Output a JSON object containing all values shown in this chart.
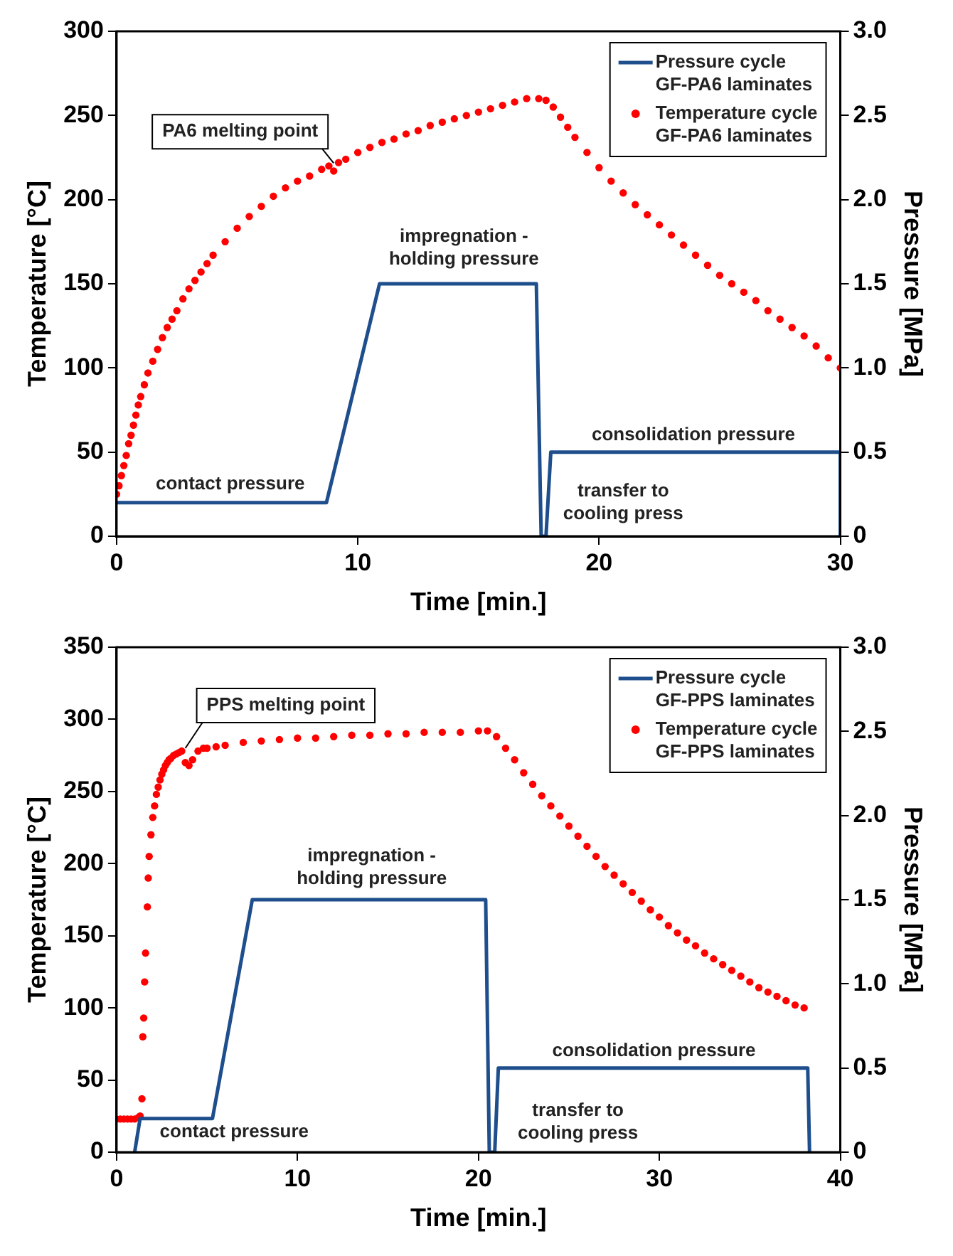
{
  "chart_data": [
    {
      "type": "line",
      "xlabel": "Time [min.]",
      "ylabel": "Temperature [°C]",
      "y2label": "Pressure [MPa]",
      "xlim": [
        0,
        30
      ],
      "xticks": [
        0,
        10,
        20,
        30
      ],
      "ylim": [
        0,
        300
      ],
      "yticks": [
        0,
        50,
        100,
        150,
        200,
        250,
        300
      ],
      "y2lim": [
        0,
        3
      ],
      "y2ticks": [
        0,
        0.5,
        {
          "value": 1,
          "label": "1.0"
        },
        1.5,
        {
          "value": 2,
          "label": "2.0"
        },
        2.5,
        {
          "value": 3,
          "label": "3.0"
        }
      ],
      "legend": "top right",
      "series": [
        {
          "name": "Pressure cycle\nGF-PA6 laminates",
          "axis": "y2",
          "marker": "none",
          "color": "#1f4e8c",
          "x": [
            0,
            8.7,
            10.9,
            17.4,
            17.6,
            17.8,
            18.0,
            30,
            30
          ],
          "values": [
            0.2,
            0.2,
            1.5,
            1.5,
            0,
            0,
            0.5,
            0.5,
            0
          ]
        },
        {
          "name": "Temperature cycle\nGF-PA6 laminates",
          "type": "scatter",
          "marker": "circle",
          "color": "#ff0000",
          "x": [
            0,
            0.1,
            0.2,
            0.3,
            0.4,
            0.5,
            0.6,
            0.7,
            0.8,
            0.9,
            1,
            1.15,
            1.3,
            1.5,
            1.7,
            1.9,
            2.1,
            2.3,
            2.5,
            2.75,
            3,
            3.25,
            3.5,
            3.75,
            4,
            4.5,
            5,
            5.5,
            6,
            6.5,
            7,
            7.5,
            8,
            8.5,
            8.8,
            9,
            9.2,
            9.5,
            10,
            10.5,
            11,
            11.5,
            12,
            12.5,
            13,
            13.5,
            14,
            14.5,
            15,
            15.5,
            16,
            16.5,
            17,
            17.5,
            17.8,
            18.1,
            18.4,
            18.7,
            19,
            19.5,
            20,
            20.5,
            21,
            21.5,
            22,
            22.5,
            23,
            23.5,
            24,
            24.5,
            25,
            25.5,
            26,
            26.5,
            27,
            27.5,
            28,
            28.5,
            29,
            29.5,
            30
          ],
          "values": [
            25,
            30,
            36,
            42,
            48,
            55,
            60,
            66,
            72,
            78,
            83,
            90,
            97,
            104,
            111,
            118,
            124,
            129,
            134,
            141,
            147,
            152,
            157,
            162,
            167,
            175,
            183,
            190,
            196,
            202,
            207,
            211,
            214,
            218,
            220,
            217,
            222,
            224,
            228,
            231,
            234,
            236,
            239,
            241,
            244,
            246,
            248,
            250,
            252,
            254,
            256,
            258,
            260,
            260,
            259,
            255,
            249,
            243,
            237,
            228,
            219,
            211,
            204,
            197,
            191,
            185,
            179,
            173,
            167,
            161,
            155,
            150,
            145,
            140,
            134,
            129,
            124,
            119,
            113,
            106,
            100
          ]
        }
      ],
      "annotations": [
        {
          "text": "PA6 melting point",
          "x": 9,
          "y": 220
        },
        "contact pressure",
        "impregnation -\nholding pressure",
        "consolidation pressure",
        "transfer to\ncooling press"
      ]
    },
    {
      "type": "line",
      "xlabel": "Time [min.]",
      "ylabel": "Temperature [°C]",
      "y2label": "Pressure [MPa]",
      "xlim": [
        0,
        40
      ],
      "xticks": [
        0,
        10,
        20,
        30,
        40
      ],
      "ylim": [
        0,
        350
      ],
      "yticks": [
        0,
        50,
        100,
        150,
        200,
        250,
        300,
        350
      ],
      "y2lim": [
        0,
        3
      ],
      "y2ticks": [
        0,
        0.5,
        {
          "value": 1,
          "label": "1.0"
        },
        1.5,
        {
          "value": 2,
          "label": "2.0"
        },
        2.5,
        {
          "value": 3,
          "label": "3.0"
        }
      ],
      "legend": "top right",
      "series": [
        {
          "name": "Pressure cycle\nGF-PPS laminates",
          "axis": "y2",
          "marker": "none",
          "color": "#1f4e8c",
          "x": [
            1,
            1.3,
            5.3,
            7.5,
            20.4,
            20.6,
            20.9,
            21.1,
            38.2,
            38.3
          ],
          "values": [
            0,
            0.2,
            0.2,
            1.5,
            1.5,
            0,
            0,
            0.5,
            0.5,
            0
          ]
        },
        {
          "name": "Temperature cycle\nGF-PPS laminates",
          "type": "scatter",
          "marker": "circle",
          "color": "#ff0000",
          "x": [
            0,
            0.2,
            0.4,
            0.6,
            0.8,
            1,
            1.2,
            1.3,
            1.4,
            1.45,
            1.5,
            1.55,
            1.6,
            1.7,
            1.75,
            1.8,
            1.9,
            2,
            2.1,
            2.2,
            2.3,
            2.4,
            2.5,
            2.6,
            2.7,
            2.8,
            2.9,
            3,
            3.15,
            3.3,
            3.45,
            3.6,
            3.8,
            4,
            4.2,
            4.5,
            4.8,
            5,
            5.5,
            6,
            7,
            8,
            9,
            10,
            11,
            12,
            13,
            14,
            15,
            16,
            17,
            18,
            19,
            20,
            20.5,
            21,
            21.5,
            22,
            22.5,
            23,
            23.5,
            24,
            24.5,
            25,
            25.5,
            26,
            26.5,
            27,
            27.5,
            28,
            28.5,
            29,
            29.5,
            30,
            30.5,
            31,
            31.5,
            32,
            32.5,
            33,
            33.5,
            34,
            34.5,
            35,
            35.5,
            36,
            36.5,
            37,
            37.5,
            38
          ],
          "values": [
            23,
            23,
            23,
            23,
            23,
            23,
            24,
            25,
            37,
            80,
            93,
            118,
            138,
            170,
            190,
            205,
            220,
            232,
            240,
            248,
            253,
            258,
            262,
            265,
            268,
            270,
            272,
            273,
            275,
            276,
            277,
            278,
            270,
            268,
            272,
            278,
            280,
            280,
            281,
            282,
            284,
            285,
            286,
            287,
            287,
            288,
            289,
            289,
            290,
            290,
            291,
            291,
            291,
            292,
            292,
            288,
            280,
            272,
            263,
            255,
            247,
            240,
            233,
            226,
            219,
            212,
            205,
            198,
            192,
            186,
            180,
            174,
            168,
            163,
            157,
            152,
            147,
            143,
            138,
            134,
            130,
            126,
            122,
            118,
            114,
            111,
            108,
            105,
            102,
            100
          ]
        }
      ],
      "annotations": [
        {
          "text": "PPS melting point",
          "x": 3.8,
          "y": 278
        },
        "contact pressure",
        "impregnation -\nholding pressure",
        "consolidation pressure",
        "transfer to\ncooling press"
      ]
    }
  ]
}
